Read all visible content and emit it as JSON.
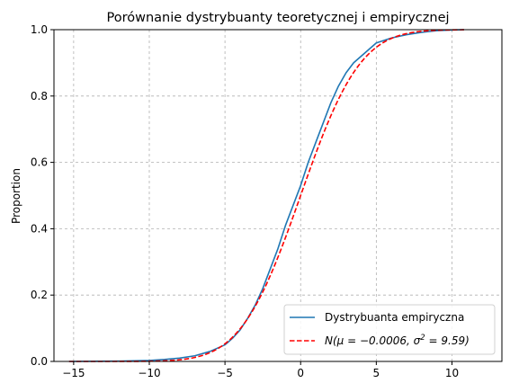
{
  "chart_data": {
    "type": "line",
    "title": "Porównanie dystrybuanty teoretycznej i empirycznej",
    "xlabel": "",
    "ylabel": "Proportion",
    "xlim": [
      -16.3,
      13.3
    ],
    "ylim": [
      0,
      1
    ],
    "xticks": [
      -15,
      -10,
      -5,
      0,
      5,
      10
    ],
    "xtick_labels": [
      "−15",
      "−10",
      "−5",
      "0",
      "5",
      "10"
    ],
    "yticks": [
      0,
      0.2,
      0.4,
      0.6,
      0.8,
      1.0
    ],
    "ytick_labels": [
      "0.0",
      "0.2",
      "0.4",
      "0.6",
      "0.8",
      "1.0"
    ],
    "grid": true,
    "legend_position": "lower-right",
    "series": [
      {
        "name": "Dystrybuanta empiryczna",
        "color": "#1f77b4",
        "style": "solid",
        "x": [
          -15.3,
          -12,
          -10,
          -9,
          -8,
          -7,
          -6,
          -5,
          -4.5,
          -4,
          -3.5,
          -3,
          -2.5,
          -2,
          -1.5,
          -1,
          -0.5,
          0,
          0.5,
          1,
          1.5,
          2,
          2.5,
          3,
          3.5,
          4,
          4.5,
          5,
          6,
          7,
          8,
          9,
          10,
          10.8
        ],
        "y": [
          0,
          0.001,
          0.003,
          0.006,
          0.01,
          0.017,
          0.03,
          0.05,
          0.07,
          0.095,
          0.13,
          0.17,
          0.22,
          0.28,
          0.34,
          0.41,
          0.47,
          0.53,
          0.6,
          0.66,
          0.72,
          0.78,
          0.83,
          0.87,
          0.9,
          0.92,
          0.94,
          0.96,
          0.975,
          0.985,
          0.992,
          0.997,
          0.999,
          1.0
        ]
      },
      {
        "name": "N(μ = −0.0006, σ² = 9.59)",
        "color": "#ff0000",
        "style": "dashed",
        "mu": -0.0006,
        "sigma2": 9.59
      }
    ]
  },
  "legend": {
    "items": [
      {
        "label": "Dystrybuanta empiryczna"
      },
      {
        "label_prefix": "N(μ = −0.0006, σ",
        "label_sup": "2",
        "label_suffix": " = 9.59)"
      }
    ]
  }
}
